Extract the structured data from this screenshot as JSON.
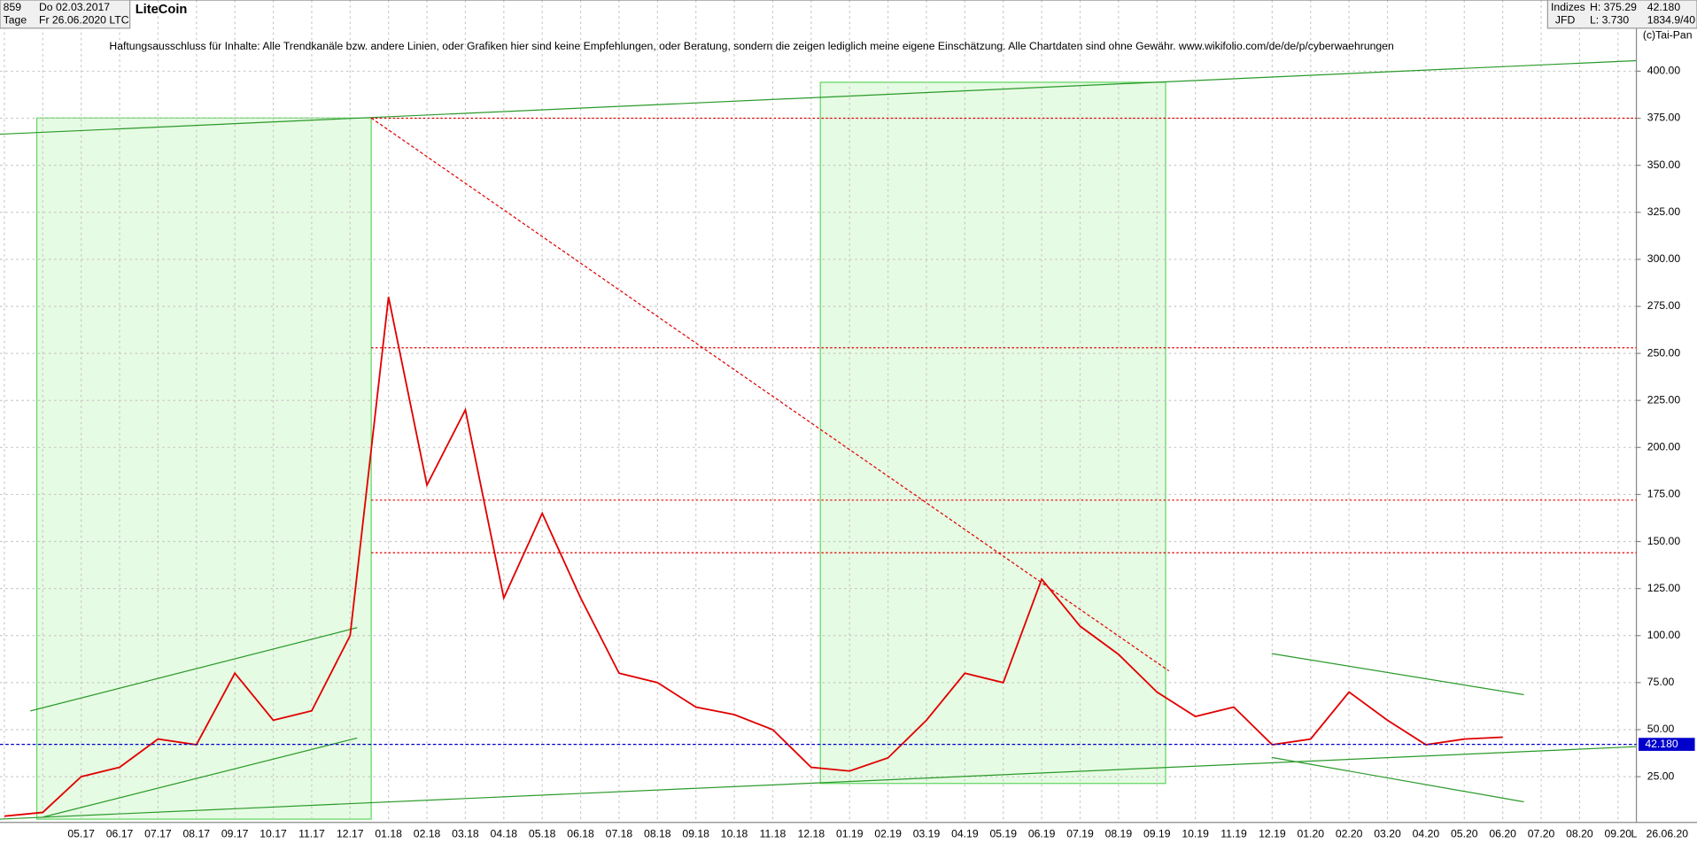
{
  "header": {
    "count": "859",
    "start": "Do 02.03.2017",
    "period": "Tage",
    "end": "Fr 26.06.2020",
    "name": "LiteCoin",
    "symbol": "LTC",
    "market": "Indizes",
    "broker": "JFD",
    "high": "H: 375.29",
    "low": "L: 3.730",
    "last": "42.180",
    "info": "1834.9/40",
    "copyright": "(c)Tai-Pan",
    "date_label": "26.06.20",
    "mode": "L"
  },
  "chart_data": {
    "type": "line",
    "title": "Haftungsausschluss für Inhalte: Alle Trendkanäle bzw. andere Linien, oder Grafiken hier sind keine Empfehlungen, oder Beratung, sondern die zeigen lediglich meine eigene Einschätzung. Alle Chartdaten sind ohne Gewähr.  www.wikifolio.com/de/de/p/cyberwaehrungen",
    "categories": [
      null,
      null,
      "05.17",
      "06.17",
      "07.17",
      "08.17",
      "09.17",
      "10.17",
      "11.17",
      "12.17",
      "01.18",
      "02.18",
      "03.18",
      "04.18",
      "05.18",
      "06.18",
      "07.18",
      "08.18",
      "09.18",
      "10.18",
      "11.18",
      "12.18",
      "01.19",
      "02.19",
      "03.19",
      "04.19",
      "05.19",
      "06.19",
      "07.19",
      "08.19",
      "09.19",
      "10.19",
      "11.19",
      "12.19",
      "01.20",
      "02.20",
      "03.20",
      "04.20",
      "05.20",
      "06.20",
      "07.20",
      "08.20",
      "09.20"
    ],
    "series": [
      {
        "name": "LiteCoin",
        "color": "#e00000",
        "values": [
          4,
          6,
          25,
          30,
          45,
          42,
          80,
          55,
          60,
          100,
          280,
          180,
          220,
          120,
          165,
          120,
          80,
          75,
          62,
          58,
          50,
          30,
          28,
          35,
          55,
          80,
          75,
          130,
          105,
          90,
          70,
          57,
          62,
          42,
          45,
          70,
          55,
          42,
          45,
          46,
          null,
          null,
          null
        ]
      }
    ],
    "current": {
      "value": 42.18,
      "label": "42.180",
      "color": "#0000cc"
    },
    "reference_lines": [
      375,
      253,
      172,
      144
    ],
    "ylim": [
      3,
      420
    ],
    "yticks": [
      {
        "value": 25,
        "label": "25.00"
      },
      {
        "value": 50,
        "label": "50.00"
      },
      {
        "value": 75,
        "label": "75.00"
      },
      {
        "value": 100,
        "label": "100.00"
      },
      {
        "value": 125,
        "label": "125.00"
      },
      {
        "value": 150,
        "label": "150.00"
      },
      {
        "value": 175,
        "label": "175.00"
      },
      {
        "value": 200,
        "label": "200.00"
      },
      {
        "value": 225,
        "label": "225.00"
      },
      {
        "value": 250,
        "label": "250.00"
      },
      {
        "value": 275,
        "label": "275.00"
      },
      {
        "value": 300,
        "label": "300.00"
      },
      {
        "value": 325,
        "label": "325.00"
      },
      {
        "value": 350,
        "label": "350.00"
      },
      {
        "value": 375,
        "label": "375.00"
      },
      {
        "value": 400,
        "label": "400.00"
      }
    ],
    "grid": true
  }
}
